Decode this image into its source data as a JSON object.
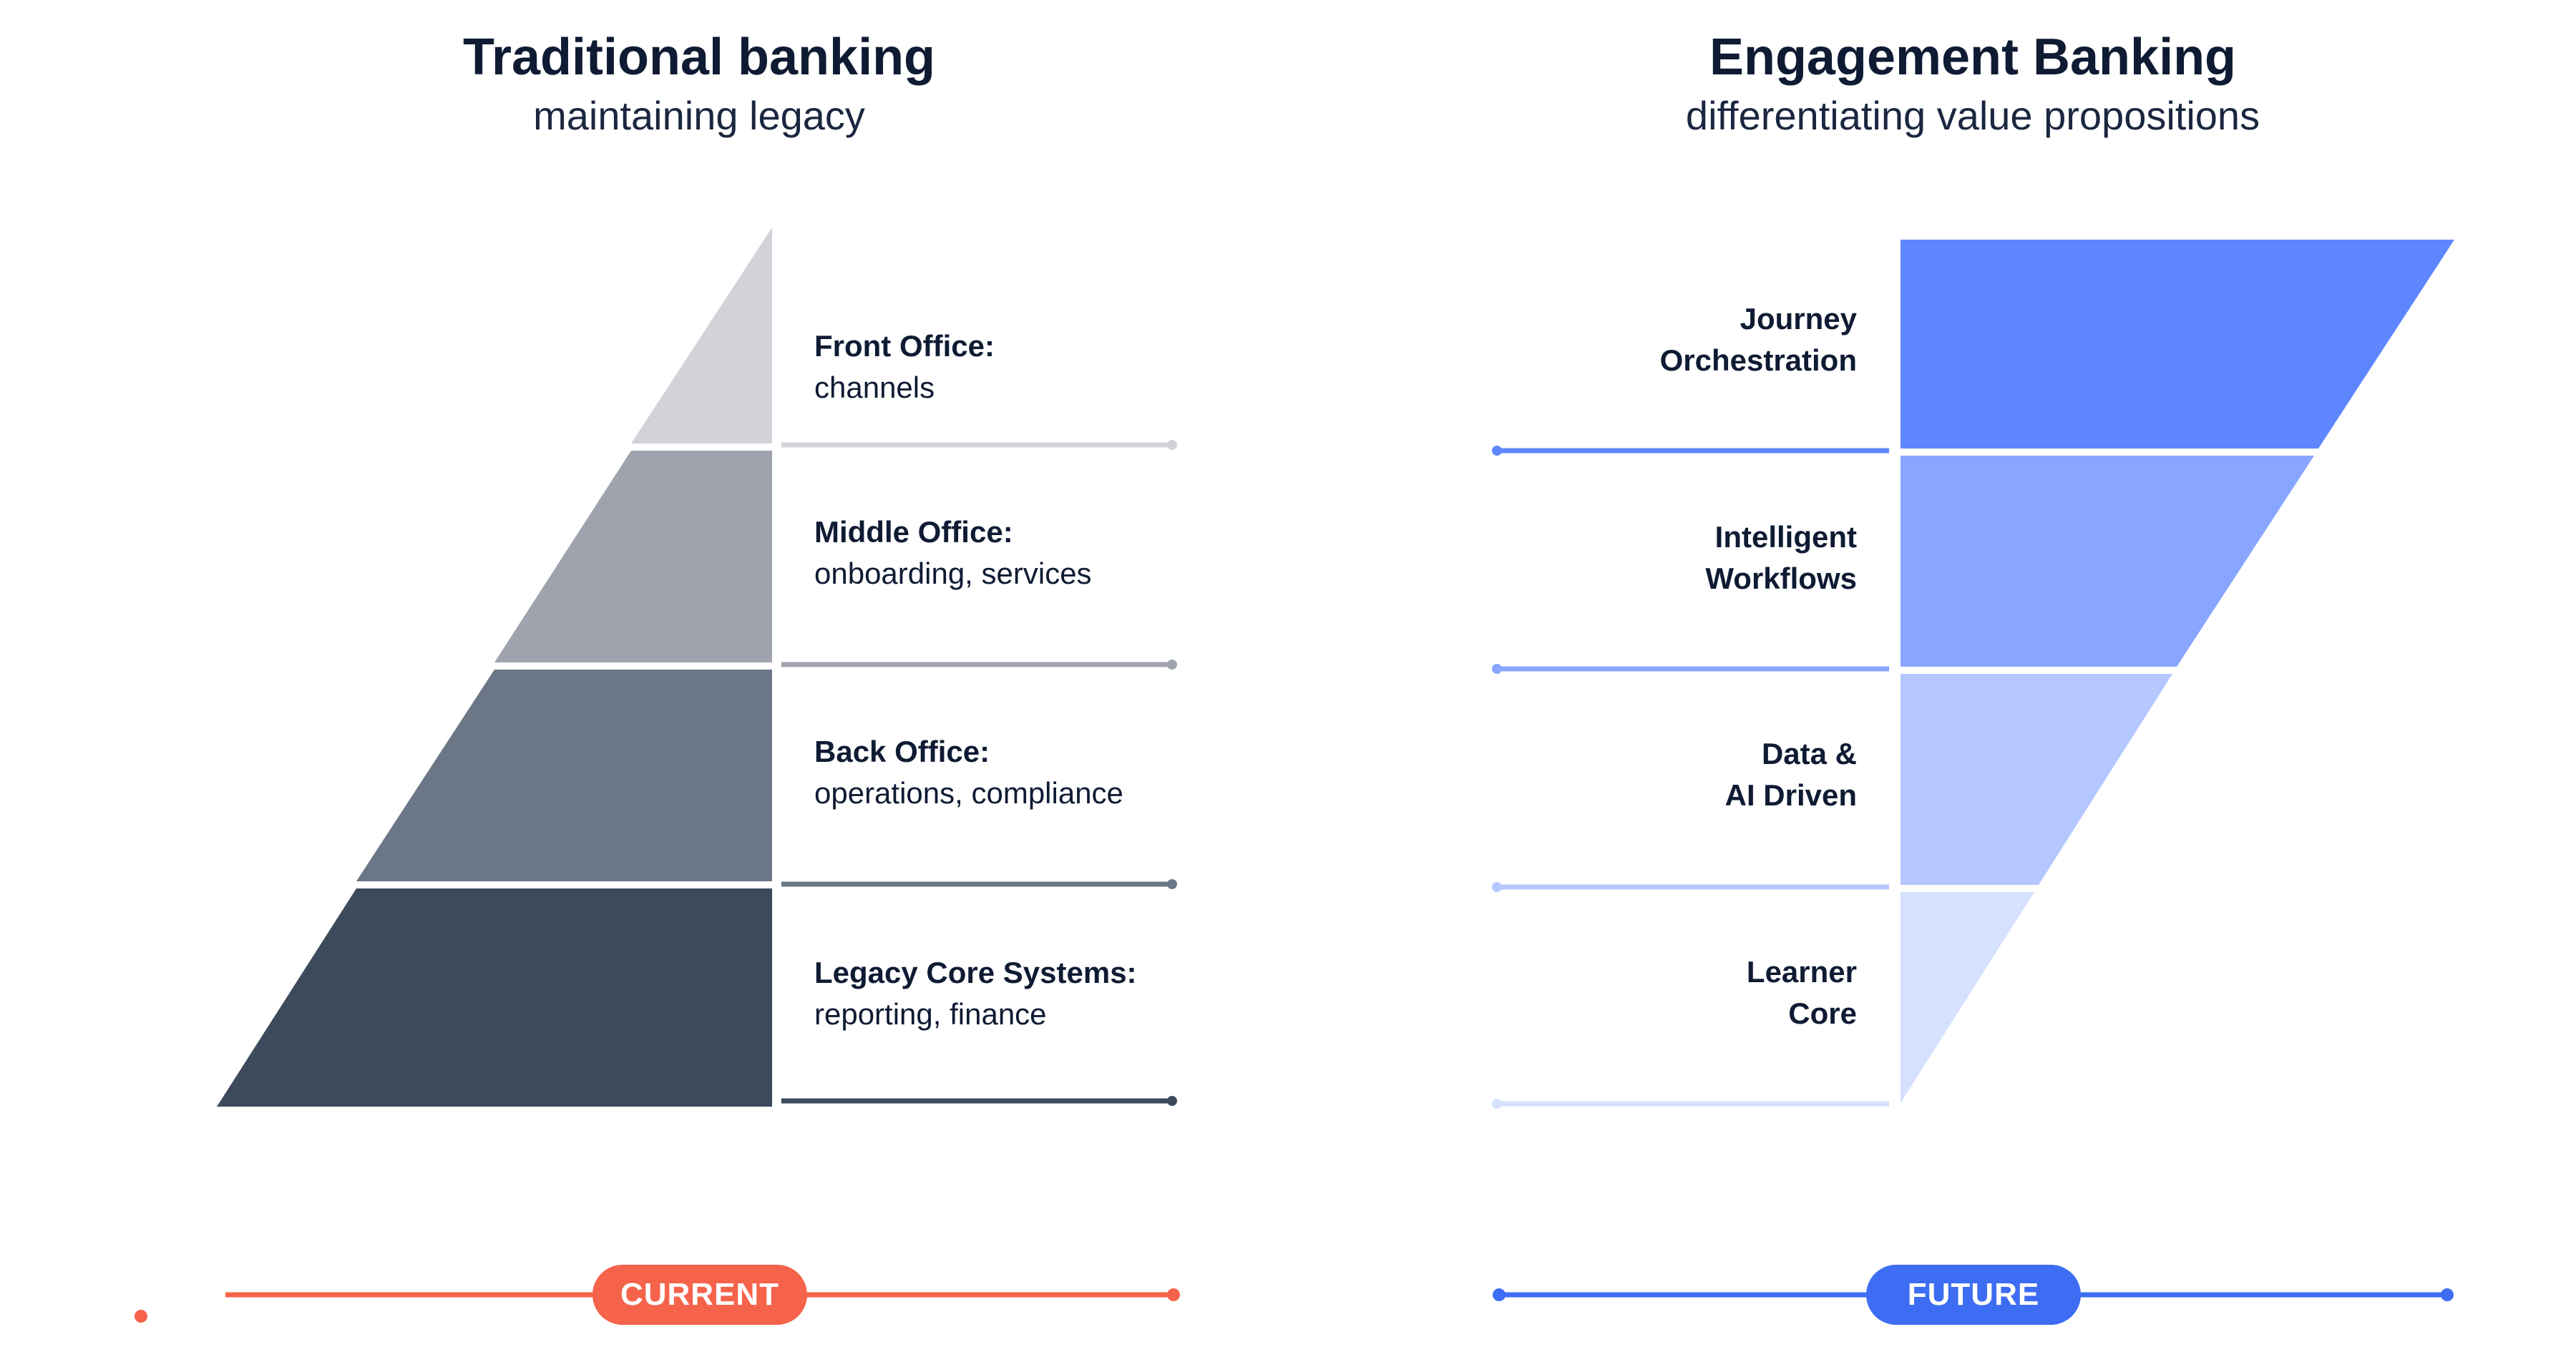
{
  "colors": {
    "text_dark": "#0f1b33",
    "current_accent": "#f4634a",
    "future_accent": "#3d6df2",
    "traditional_tiers": [
      "#d1d3d9",
      "#9ea3ad",
      "#6b7787",
      "#3c4a5c"
    ],
    "engagement_tiers": [
      "#5e86ff",
      "#88a6ff",
      "#b4c7ff",
      "#d6e1ff"
    ],
    "engagement_lines": [
      "#5e86ff",
      "#88a6ff",
      "#b4c7ff",
      "#d6e1ff"
    ]
  },
  "traditional": {
    "title": "Traditional banking",
    "subtitle": "maintaining legacy",
    "tiers": [
      {
        "name": "Front Office:",
        "detail": "channels"
      },
      {
        "name": "Middle Office:",
        "detail": "onboarding, services"
      },
      {
        "name": "Back Office:",
        "detail": "operations, compliance"
      },
      {
        "name": "Legacy Core Systems:",
        "detail": "reporting, finance"
      }
    ],
    "timeline_label": "CURRENT"
  },
  "engagement": {
    "title": "Engagement Banking",
    "subtitle": "differentiating value propositions",
    "tiers": [
      {
        "line1": "Journey",
        "line2": "Orchestration"
      },
      {
        "line1": "Intelligent",
        "line2": "Workflows"
      },
      {
        "line1": "Data &",
        "line2": "AI Driven"
      },
      {
        "line1": "Learner",
        "line2": "Core"
      }
    ],
    "timeline_label": "FUTURE"
  }
}
